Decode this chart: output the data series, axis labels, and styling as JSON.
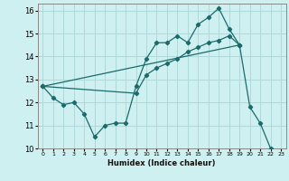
{
  "xlabel": "Humidex (Indice chaleur)",
  "bg_color": "#cff0f0",
  "grid_color": "#b0d8d8",
  "line_color": "#1a6b6b",
  "xlim": [
    -0.5,
    23.5
  ],
  "ylim": [
    10,
    16.3
  ],
  "yticks": [
    10,
    11,
    12,
    13,
    14,
    15,
    16
  ],
  "xticks": [
    0,
    1,
    2,
    3,
    4,
    5,
    6,
    7,
    8,
    9,
    10,
    11,
    12,
    13,
    14,
    15,
    16,
    17,
    18,
    19,
    20,
    21,
    22,
    23
  ],
  "line1_x": [
    0,
    1,
    2,
    3,
    4,
    5,
    6,
    7,
    8,
    9,
    10,
    11,
    12,
    13,
    14,
    15,
    16,
    17,
    18,
    19,
    20,
    21,
    22
  ],
  "line1_y": [
    12.7,
    12.2,
    11.9,
    12.0,
    11.5,
    10.5,
    11.0,
    11.1,
    11.1,
    12.7,
    13.9,
    14.6,
    14.6,
    14.9,
    14.6,
    15.4,
    15.7,
    16.1,
    15.2,
    14.5,
    11.8,
    11.1,
    10.0
  ],
  "line2_x": [
    0,
    19
  ],
  "line2_y": [
    12.7,
    14.5
  ],
  "line3_x": [
    0,
    9,
    10,
    11,
    12,
    13,
    14,
    15,
    16,
    17,
    18,
    19
  ],
  "line3_y": [
    12.7,
    12.4,
    13.2,
    13.5,
    13.7,
    13.9,
    14.2,
    14.4,
    14.6,
    14.7,
    14.9,
    14.5
  ]
}
